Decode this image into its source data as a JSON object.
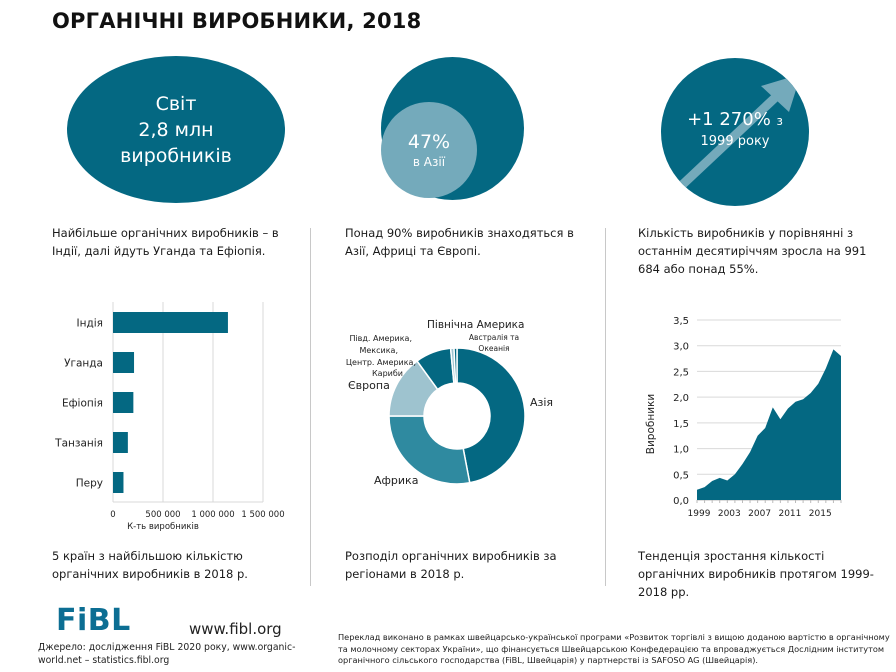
{
  "title": "ОРГАНІЧНІ ВИРОБНИКИ, 2018",
  "stats": {
    "world": {
      "line1": "Світ",
      "line2": "2,8 млн",
      "line3": "виробників"
    },
    "asia": {
      "value": "47%",
      "label": "в Азії",
      "share": 0.47
    },
    "growth": {
      "value": "+1 270%",
      "suffix": "з",
      "line2": "1999 року",
      "icon": "arrow-up-right-icon"
    }
  },
  "descriptions": [
    "Найбільше органічних виробників – в Індії, далі йдуть Уганда та Ефіопія.",
    "Понад 90% виробників знаходяться в Азії, Африці та Європі.",
    "Кількість виробників у порівнянні з останнім десятиріччям зросла на 991 684 або понад 55%."
  ],
  "captions": [
    "5 країн з найбільшою кількістю органічних виробників в 2018 р.",
    "Розподіл органічних виробників за регіонами в 2018 р.",
    "Тенденція зростання кількості органічних виробників протягом 1999-2018 рр."
  ],
  "colors": {
    "primary": "#046882",
    "mid": "#2f8aa0",
    "light": "#9ec3cf",
    "inner_circle": "#74aabb",
    "arrow": "#74aabb"
  },
  "chart_data": [
    {
      "type": "bar",
      "orientation": "horizontal",
      "categories": [
        "Індія",
        "Уганда",
        "Ефіопія",
        "Танзанія",
        "Перу"
      ],
      "values": [
        1149371,
        210352,
        203602,
        148610,
        104684
      ],
      "xlabel": "К-ть виробників",
      "xlim": [
        0,
        1500000
      ],
      "xticks": [
        0,
        500000,
        1000000,
        1500000
      ],
      "xtick_labels": [
        "0",
        "500 000",
        "1 000 000",
        "1 500 000"
      ],
      "grid": true
    },
    {
      "type": "pie",
      "donut": true,
      "categories": [
        "Азія",
        "Африка",
        "Європа",
        "Півд. Америка, Мексика, Центр. Америка, Кариби",
        "Північна Америка",
        "Австралія та Океанія"
      ],
      "values": [
        47,
        28,
        15,
        8.5,
        0.8,
        0.7
      ],
      "labels": {
        "asia": "Азія",
        "africa": "Африка",
        "europe": "Європа",
        "latam": [
          "Півд. Америка,",
          "Мексика,",
          "Центр. Америка,",
          "Кариби"
        ],
        "north_america": "Північна Америка",
        "oceania": [
          "Австралія та",
          "Океанія"
        ]
      }
    },
    {
      "type": "area",
      "x": [
        1999,
        2000,
        2001,
        2002,
        2003,
        2004,
        2005,
        2006,
        2007,
        2008,
        2009,
        2010,
        2011,
        2012,
        2013,
        2014,
        2015,
        2016,
        2017,
        2018
      ],
      "values": [
        0.2,
        0.25,
        0.37,
        0.43,
        0.38,
        0.5,
        0.7,
        0.93,
        1.25,
        1.4,
        1.8,
        1.57,
        1.78,
        1.91,
        1.96,
        2.08,
        2.26,
        2.56,
        2.93,
        2.8
      ],
      "ylabel": "Виробники",
      "ylim": [
        0,
        3.5
      ],
      "yticks": [
        0,
        0.5,
        1.0,
        1.5,
        2.0,
        2.5,
        3.0,
        3.5
      ],
      "ytick_labels": [
        "0,0",
        "0,5",
        "1,0",
        "1,5",
        "2,0",
        "2,5",
        "3,0",
        "3,5"
      ],
      "xtick_labels": [
        "1999",
        "2003",
        "2007",
        "2011",
        "2015"
      ],
      "xtick_years": [
        1999,
        2003,
        2007,
        2011,
        2015
      ],
      "grid": true
    }
  ],
  "footer": {
    "logo": "FiBL",
    "url": "www.fibl.org",
    "source": "Джерело: дослідження FiBL 2020 року, www.organic-world.net – statistics.fibl.org",
    "translation_note": "Переклад виконано в рамках швейцарсько-української програми «Розвиток торгівлі з вищою доданою вартістю в органічному та молочному секторах України», що фінансується Швейцарською Конфедерацією та впроваджується Дослідним інститутом органічного сільського господарства (FiBL, Швейцарія) у партнерстві із SAFOSO AG (Швейцарія)."
  }
}
